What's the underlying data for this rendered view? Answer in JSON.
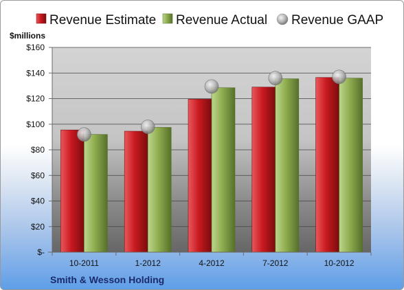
{
  "chart_data": {
    "type": "bar",
    "categories": [
      "10-2011",
      "1-2012",
      "4-2012",
      "7-2012",
      "10-2012"
    ],
    "series": [
      {
        "name": "Revenue Estimate",
        "values": [
          95.5,
          94.5,
          119.5,
          129,
          136.5
        ]
      },
      {
        "name": "Revenue Actual",
        "values": [
          92,
          97.5,
          128.5,
          135.5,
          136
        ]
      },
      {
        "name": "Revenue GAAP",
        "values": [
          92,
          98,
          129.5,
          136,
          137
        ]
      }
    ],
    "ylabel": "$millions",
    "ylim": [
      0,
      160
    ],
    "yticks": [
      "$-",
      "$20",
      "$40",
      "$60",
      "$80",
      "$100",
      "$120",
      "$140",
      "$160"
    ],
    "grid": true,
    "legend": "top",
    "colors": {
      "estimate": "#c0191e",
      "actual": "#8fad4f",
      "gaap": "#b8b8b8"
    }
  },
  "footer": {
    "company": "Smith & Wesson Holding"
  }
}
